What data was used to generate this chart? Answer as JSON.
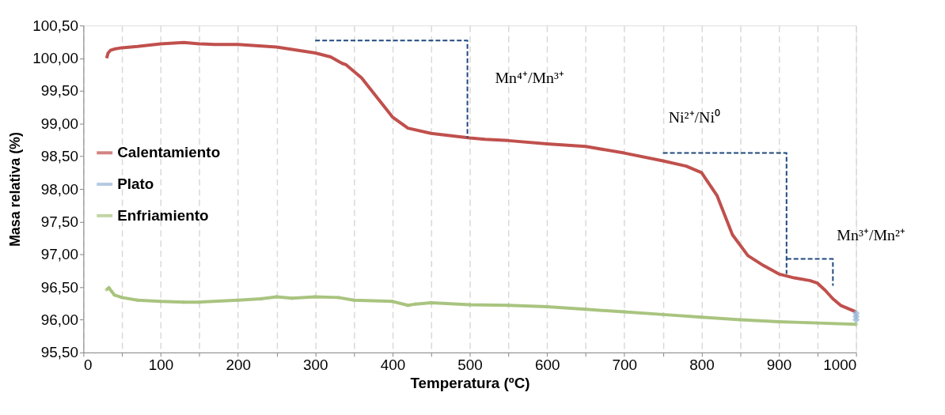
{
  "chart_data": {
    "type": "line",
    "xlabel": "Temperatura (ºC)",
    "ylabel": "Masa relativa (%)",
    "xlim": [
      0,
      1000
    ],
    "ylim": [
      95.5,
      100.5
    ],
    "xticks": [
      0,
      {
        "value": 50,
        "label": null
      },
      100,
      {
        "value": 150,
        "label": null
      },
      200,
      {
        "value": 250,
        "label": null
      },
      300,
      {
        "value": 350,
        "label": null
      },
      400,
      {
        "value": 450,
        "label": null
      },
      500,
      {
        "value": 550,
        "label": null
      },
      600,
      {
        "value": 650,
        "label": null
      },
      700,
      {
        "value": 750,
        "label": null
      },
      800,
      {
        "value": 850,
        "label": null
      },
      900,
      {
        "value": 950,
        "label": null
      },
      1000
    ],
    "yticks": [
      {
        "value": 95.5,
        "label": "95,50"
      },
      {
        "value": 96,
        "label": "96,00"
      },
      {
        "value": 96.5,
        "label": "96,50"
      },
      {
        "value": 97,
        "label": "97,00"
      },
      {
        "value": 97.5,
        "label": "97,50"
      },
      {
        "value": 98,
        "label": "98,00"
      },
      {
        "value": 98.5,
        "label": "98,50"
      },
      {
        "value": 99,
        "label": "99,00"
      },
      {
        "value": 99.5,
        "label": "99,50"
      },
      {
        "value": 100,
        "label": "100,00"
      },
      {
        "value": 100.5,
        "label": "100,50"
      }
    ],
    "grid": "x",
    "legend": "left",
    "series": [
      {
        "name": "Calentamiento",
        "color": "#c0504d",
        "marker": "none",
        "x": [
          30,
          32,
          35,
          40,
          50,
          70,
          100,
          130,
          150,
          170,
          200,
          250,
          300,
          320,
          335,
          340,
          360,
          380,
          400,
          420,
          450,
          500,
          520,
          550,
          600,
          650,
          700,
          750,
          780,
          800,
          820,
          840,
          860,
          880,
          900,
          920,
          940,
          950,
          960,
          970,
          980,
          1000
        ],
        "values": [
          100.0,
          100.08,
          100.12,
          100.14,
          100.16,
          100.18,
          100.22,
          100.24,
          100.22,
          100.21,
          100.21,
          100.17,
          100.08,
          100.02,
          99.92,
          99.9,
          99.7,
          99.4,
          99.1,
          98.93,
          98.85,
          98.78,
          98.76,
          98.74,
          98.69,
          98.65,
          98.55,
          98.43,
          98.35,
          98.25,
          97.9,
          97.3,
          96.98,
          96.83,
          96.7,
          96.64,
          96.6,
          96.56,
          96.45,
          96.32,
          96.22,
          96.12
        ]
      },
      {
        "name": "Plato",
        "color": "#95b3d7",
        "type": "scatter",
        "marker": "diamond",
        "x": [
          1000,
          1000,
          1000
        ],
        "values": [
          96.0,
          96.05,
          96.1
        ]
      },
      {
        "name": "Enfriamiento",
        "color": "#a9c47f",
        "marker": "diamond",
        "x": [
          30,
          33,
          36,
          40,
          50,
          70,
          100,
          130,
          150,
          200,
          230,
          250,
          270,
          300,
          330,
          350,
          400,
          420,
          430,
          450,
          500,
          550,
          600,
          650,
          700,
          750,
          800,
          850,
          900,
          950,
          1000
        ],
        "values": [
          96.46,
          96.49,
          96.44,
          96.38,
          96.34,
          96.3,
          96.28,
          96.27,
          96.27,
          96.3,
          96.32,
          96.35,
          96.33,
          96.35,
          96.34,
          96.3,
          96.28,
          96.22,
          96.24,
          96.26,
          96.23,
          96.22,
          96.2,
          96.16,
          96.12,
          96.08,
          96.04,
          96.0,
          95.97,
          95.95,
          95.93
        ]
      },
      {
        "color": "#1f497d",
        "line_style": "dashed",
        "x": [
          300,
          497,
          497
        ],
        "values": [
          100.27,
          100.27,
          98.78
        ]
      },
      {
        "color": "#1f497d",
        "line_style": "dashed",
        "x": [
          750,
          910,
          910
        ],
        "values": [
          98.55,
          98.55,
          96.7
        ]
      },
      {
        "color": "#1f497d",
        "line_style": "dashed",
        "x": [
          910,
          970,
          970
        ],
        "values": [
          96.93,
          96.93,
          96.52
        ]
      }
    ],
    "annotations": [
      "Mn⁴⁺/Mn³⁺",
      "Ni²⁺/Ni⁰",
      "Mn³⁺/Mn²⁺"
    ]
  }
}
